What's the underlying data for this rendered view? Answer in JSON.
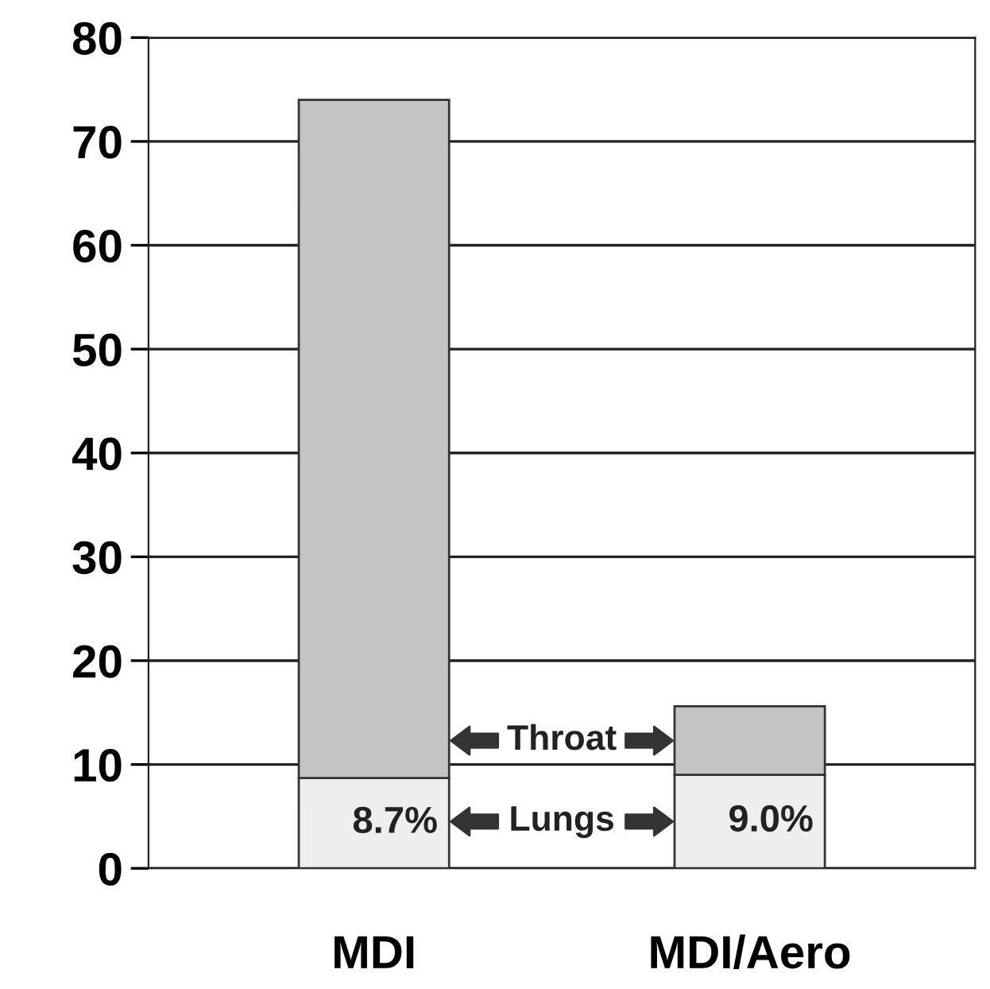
{
  "chart_data": {
    "type": "bar",
    "stacked": true,
    "categories": [
      "MDI",
      "MDI/Aero"
    ],
    "series": [
      {
        "name": "Lungs",
        "color": "#eeeeee",
        "values": [
          8.7,
          9.0
        ],
        "value_labels": [
          "8.7%",
          "9.0%"
        ]
      },
      {
        "name": "Throat",
        "color": "#c4c4c4",
        "values": [
          65.3,
          6.6
        ]
      }
    ],
    "ylim": [
      0,
      80
    ],
    "yticks": [
      0,
      10,
      20,
      30,
      40,
      50,
      60,
      70,
      80
    ],
    "grid": "y",
    "legend": false
  }
}
